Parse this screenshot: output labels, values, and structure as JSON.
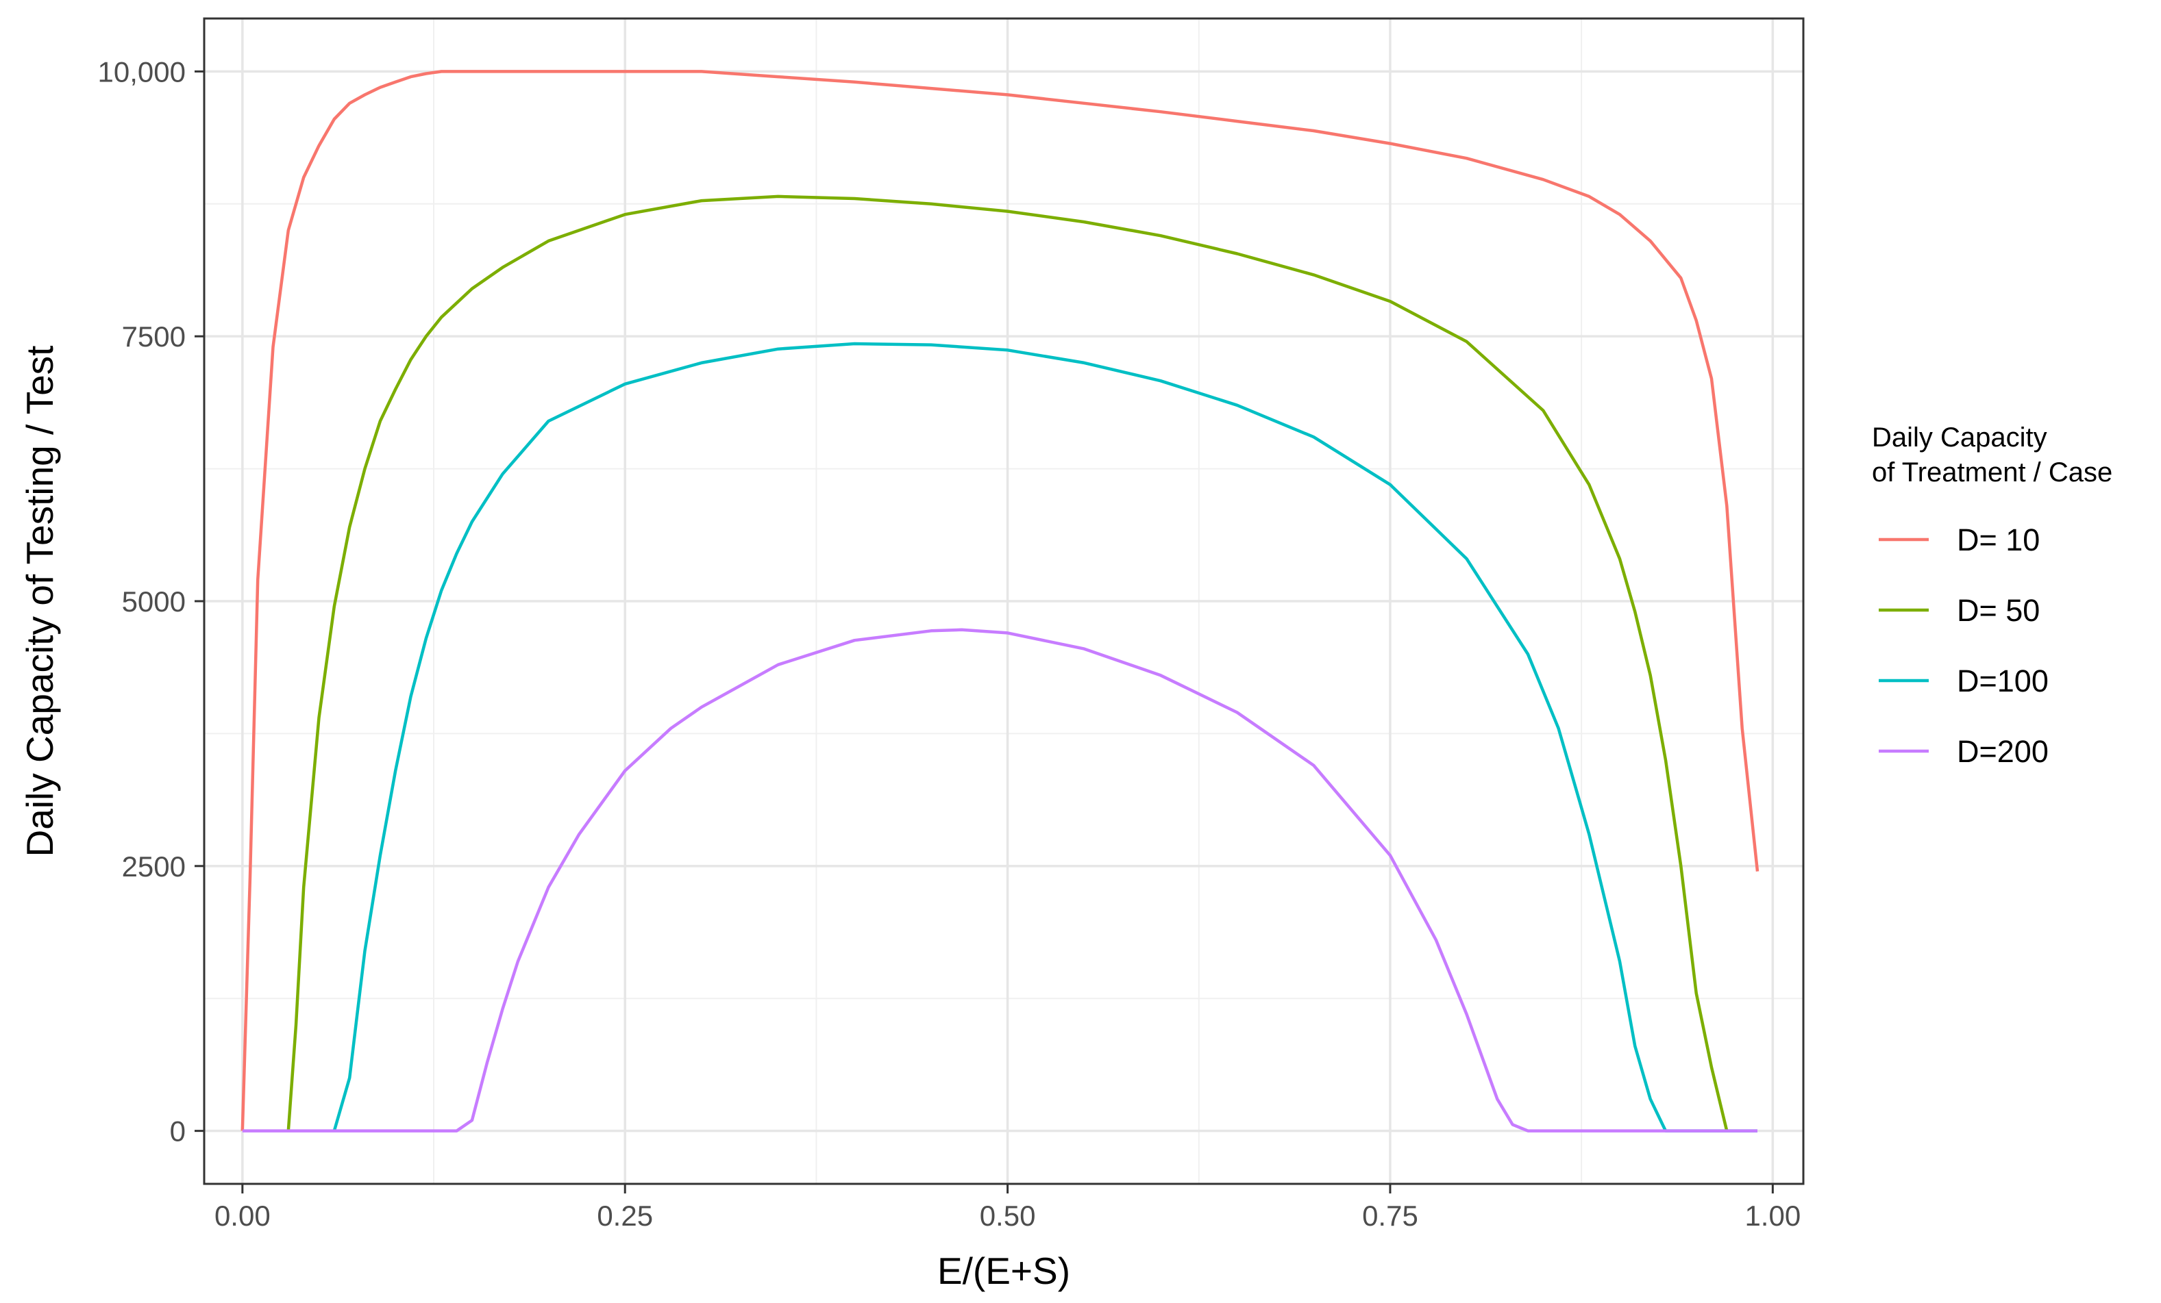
{
  "chart_data": {
    "type": "line",
    "title": "",
    "xlabel": "E/(E+S)",
    "ylabel": "Daily Capacity of Testing / Test",
    "xlim": [
      -0.025,
      1.02
    ],
    "ylim": [
      -500,
      10500
    ],
    "x_ticks": [
      0,
      0.25,
      0.5,
      0.75,
      1
    ],
    "x_tick_labels": [
      "0.00",
      "0.25",
      "0.50",
      "0.75",
      "1.00"
    ],
    "y_ticks": [
      0,
      2500,
      5000,
      7500,
      10000
    ],
    "y_tick_labels": [
      "0",
      "2500",
      "5000",
      "7500",
      "10,000"
    ],
    "grid": true,
    "legend": {
      "position": "right",
      "title_lines": [
        "Daily Capacity",
        "of Treatment / Case"
      ]
    },
    "series": [
      {
        "name": "D= 10",
        "color": "#F8766D",
        "x": [
          0.0,
          0.005,
          0.01,
          0.02,
          0.03,
          0.04,
          0.05,
          0.06,
          0.07,
          0.08,
          0.09,
          0.1,
          0.11,
          0.12,
          0.13,
          0.2,
          0.3,
          0.35,
          0.4,
          0.45,
          0.5,
          0.55,
          0.6,
          0.65,
          0.7,
          0.75,
          0.8,
          0.85,
          0.88,
          0.9,
          0.92,
          0.94,
          0.95,
          0.96,
          0.97,
          0.98,
          0.99
        ],
        "y": [
          0,
          2400,
          5200,
          7400,
          8500,
          9000,
          9300,
          9550,
          9700,
          9780,
          9850,
          9900,
          9950,
          9980,
          10000,
          10000,
          10000,
          9950,
          9900,
          9840,
          9780,
          9700,
          9620,
          9530,
          9440,
          9320,
          9180,
          8980,
          8820,
          8650,
          8400,
          8050,
          7650,
          7100,
          5900,
          3800,
          2450
        ]
      },
      {
        "name": "D= 50",
        "color": "#7CAE00",
        "x": [
          0.03,
          0.035,
          0.04,
          0.05,
          0.06,
          0.07,
          0.08,
          0.09,
          0.1,
          0.11,
          0.12,
          0.13,
          0.15,
          0.17,
          0.2,
          0.25,
          0.3,
          0.35,
          0.4,
          0.45,
          0.5,
          0.55,
          0.6,
          0.65,
          0.7,
          0.75,
          0.8,
          0.85,
          0.88,
          0.9,
          0.91,
          0.92,
          0.93,
          0.94,
          0.95,
          0.96,
          0.97
        ],
        "y": [
          0,
          1000,
          2300,
          3900,
          4950,
          5700,
          6250,
          6700,
          7000,
          7280,
          7500,
          7680,
          7950,
          8150,
          8400,
          8650,
          8780,
          8820,
          8800,
          8750,
          8680,
          8580,
          8450,
          8280,
          8080,
          7830,
          7450,
          6800,
          6100,
          5400,
          4900,
          4300,
          3500,
          2500,
          1300,
          600,
          0
        ]
      },
      {
        "name": "D=100",
        "color": "#00BFC4",
        "x": [
          0.06,
          0.07,
          0.075,
          0.08,
          0.09,
          0.1,
          0.11,
          0.12,
          0.13,
          0.14,
          0.15,
          0.17,
          0.2,
          0.25,
          0.3,
          0.35,
          0.4,
          0.45,
          0.5,
          0.55,
          0.6,
          0.65,
          0.7,
          0.75,
          0.8,
          0.84,
          0.86,
          0.88,
          0.9,
          0.91,
          0.92,
          0.93,
          0.94,
          0.97,
          0.99
        ],
        "y": [
          0,
          500,
          1100,
          1700,
          2600,
          3400,
          4100,
          4650,
          5100,
          5450,
          5750,
          6200,
          6700,
          7050,
          7250,
          7380,
          7430,
          7420,
          7370,
          7250,
          7080,
          6850,
          6550,
          6100,
          5400,
          4500,
          3800,
          2800,
          1600,
          800,
          300,
          0,
          0,
          0,
          0
        ]
      },
      {
        "name": "D=200",
        "color": "#C77CFF",
        "x": [
          0.0,
          0.05,
          0.1,
          0.14,
          0.15,
          0.16,
          0.17,
          0.18,
          0.2,
          0.22,
          0.25,
          0.28,
          0.3,
          0.35,
          0.4,
          0.45,
          0.47,
          0.5,
          0.55,
          0.6,
          0.65,
          0.7,
          0.75,
          0.78,
          0.8,
          0.82,
          0.83,
          0.84,
          0.9,
          0.95,
          0.99
        ],
        "y": [
          0,
          0,
          0,
          0,
          100,
          650,
          1150,
          1600,
          2300,
          2800,
          3400,
          3800,
          4000,
          4400,
          4630,
          4720,
          4730,
          4700,
          4550,
          4300,
          3950,
          3450,
          2600,
          1800,
          1100,
          300,
          60,
          0,
          0,
          0,
          0
        ]
      }
    ]
  }
}
